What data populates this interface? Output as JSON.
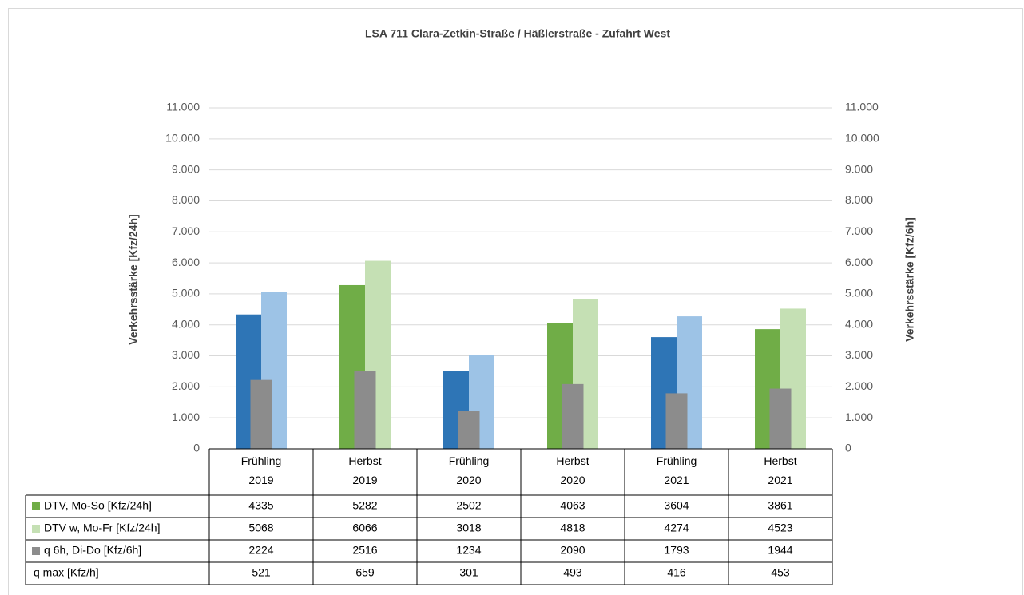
{
  "chart_data": {
    "type": "bar",
    "title": "LSA 711 Clara-Zetkin-Straße / Häßlerstraße - Zufahrt West",
    "y_label": "Verkehrsstärke [Kfz/24h]",
    "y2_label": "Verkehrsstärke [Kfz/6h]",
    "categories": [
      "Frühling 2019",
      "Herbst 2019",
      "Frühling 2020",
      "Herbst 2020",
      "Frühling 2021",
      "Herbst 2021"
    ],
    "series": [
      {
        "name": "DTV, Mo-So [Kfz/24h]",
        "color": "#70ad47",
        "point_colors": [
          "#2e75b6",
          "#70ad47",
          "#2e75b6",
          "#70ad47",
          "#2e75b6",
          "#70ad47"
        ],
        "values": [
          4335,
          5282,
          2502,
          4063,
          3604,
          3861
        ]
      },
      {
        "name": "DTV w, Mo-Fr [Kfz/24h]",
        "color": "#c5e0b4",
        "point_colors": [
          "#9dc3e6",
          "#c5e0b4",
          "#9dc3e6",
          "#c5e0b4",
          "#9dc3e6",
          "#c5e0b4"
        ],
        "values": [
          5068,
          6066,
          3018,
          4818,
          4274,
          4523
        ]
      },
      {
        "name": "q 6h, Di-Do [Kfz/6h]",
        "color": "#8c8c8c",
        "axis": "y2",
        "values": [
          2224,
          2516,
          1234,
          2090,
          1793,
          1944
        ]
      },
      {
        "name": "q max [Kfz/h]",
        "values": [
          521,
          659,
          301,
          493,
          416,
          453
        ]
      }
    ],
    "ylim": [
      0,
      11000
    ],
    "yticks": [
      0,
      {
        "value": 1000,
        "label": "1.000"
      },
      {
        "value": 2000,
        "label": "2.000"
      },
      {
        "value": 3000,
        "label": "3.000"
      },
      {
        "value": 4000,
        "label": "4.000"
      },
      {
        "value": 5000,
        "label": "5.000"
      },
      {
        "value": 6000,
        "label": "6.000"
      },
      {
        "value": 7000,
        "label": "7.000"
      },
      {
        "value": 8000,
        "label": "8.000"
      },
      {
        "value": 9000,
        "label": "9.000"
      },
      {
        "value": 10000,
        "label": "10.000"
      },
      {
        "value": 11000,
        "label": "11.000"
      }
    ],
    "y2lim": [
      0,
      11000
    ],
    "y2ticks": [
      0,
      {
        "value": 1000,
        "label": "1.000"
      },
      {
        "value": 2000,
        "label": "2.000"
      },
      {
        "value": 3000,
        "label": "3.000"
      },
      {
        "value": 4000,
        "label": "4.000"
      },
      {
        "value": 5000,
        "label": "5.000"
      },
      {
        "value": 6000,
        "label": "6.000"
      },
      {
        "value": 7000,
        "label": "7.000"
      },
      {
        "value": 8000,
        "label": "8.000"
      },
      {
        "value": 9000,
        "label": "9.000"
      },
      {
        "value": 10000,
        "label": "10.000"
      },
      {
        "value": 11000,
        "label": "11.000"
      }
    ],
    "grid": true
  }
}
